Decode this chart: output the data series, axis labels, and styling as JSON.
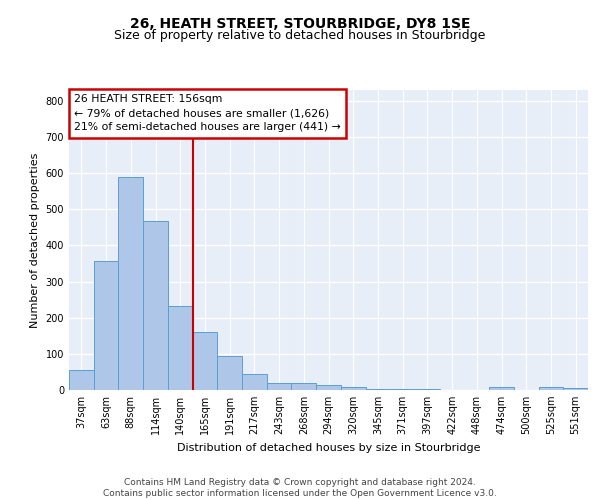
{
  "title": "26, HEATH STREET, STOURBRIDGE, DY8 1SE",
  "subtitle": "Size of property relative to detached houses in Stourbridge",
  "xlabel": "Distribution of detached houses by size in Stourbridge",
  "ylabel": "Number of detached properties",
  "footer_line1": "Contains HM Land Registry data © Crown copyright and database right 2024.",
  "footer_line2": "Contains public sector information licensed under the Open Government Licence v3.0.",
  "bar_labels": [
    "37sqm",
    "63sqm",
    "88sqm",
    "114sqm",
    "140sqm",
    "165sqm",
    "191sqm",
    "217sqm",
    "243sqm",
    "268sqm",
    "294sqm",
    "320sqm",
    "345sqm",
    "371sqm",
    "397sqm",
    "422sqm",
    "448sqm",
    "474sqm",
    "500sqm",
    "525sqm",
    "551sqm"
  ],
  "bar_values": [
    55,
    357,
    590,
    468,
    233,
    161,
    95,
    45,
    20,
    19,
    15,
    8,
    4,
    3,
    2,
    1,
    0,
    9,
    0,
    9,
    5
  ],
  "bar_color": "#aec6e8",
  "bar_edge_color": "#5a9fd4",
  "vline_color": "#cc0000",
  "annotation_line1": "26 HEATH STREET: 156sqm",
  "annotation_line2": "← 79% of detached houses are smaller (1,626)",
  "annotation_line3": "21% of semi-detached houses are larger (441) →",
  "annotation_box_color": "#cc0000",
  "ylim": [
    0,
    830
  ],
  "yticks": [
    0,
    100,
    200,
    300,
    400,
    500,
    600,
    700,
    800
  ],
  "background_color": "#e8eef8",
  "grid_color": "#ffffff",
  "title_fontsize": 10,
  "subtitle_fontsize": 9,
  "axis_label_fontsize": 8,
  "tick_fontsize": 7,
  "footer_fontsize": 6.5
}
